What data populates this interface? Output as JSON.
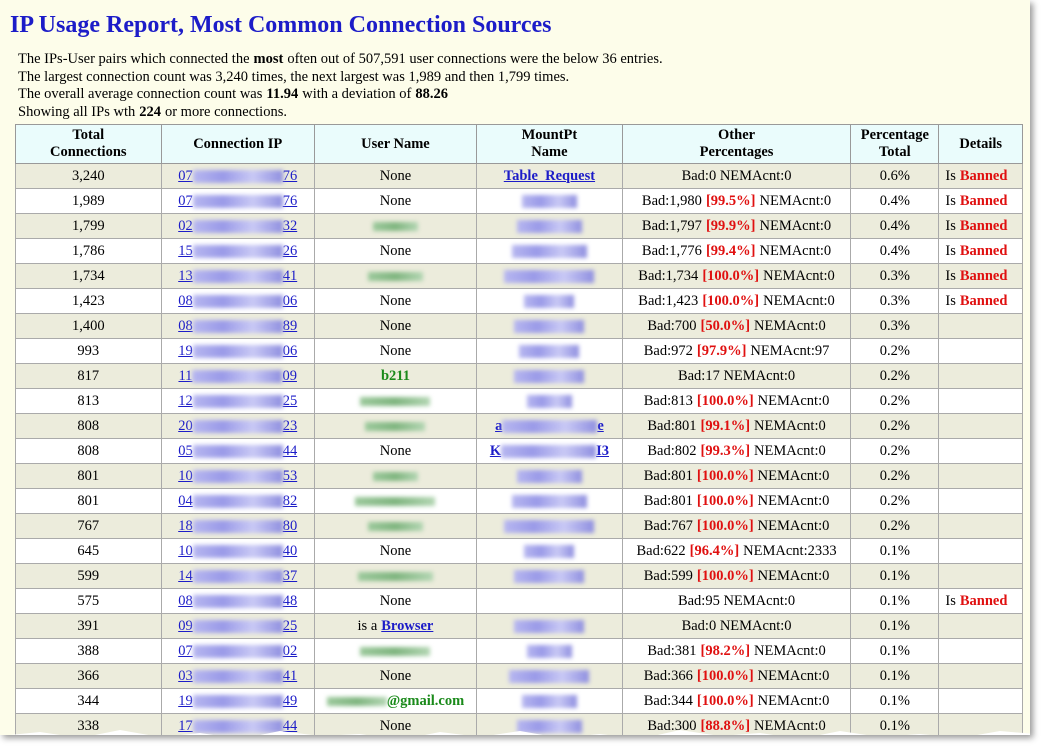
{
  "header": {
    "title": "IP Usage Report, Most Common Connection Sources"
  },
  "intro": [
    [
      "The IPs-User pairs which connected the",
      "most",
      "often out of 507,591 user connections were the below 36 entries."
    ],
    [
      "The largest connection count was 3,240 times, the next largest was 1,989 and then 1,799 times."
    ],
    [
      "The overall average connection count was",
      "11.94",
      "with a deviation of",
      "88.26"
    ],
    [
      "Showing all IPs wth",
      "224",
      "or more connections."
    ]
  ],
  "table": {
    "headers": [
      [
        "Total",
        "Connections"
      ],
      [
        "Connection IP"
      ],
      [
        "User Name"
      ],
      [
        "MountPt",
        "Name"
      ],
      [
        "Other",
        "Percentages"
      ],
      [
        "Percentage",
        "Total"
      ],
      [
        "Details"
      ]
    ],
    "rows": [
      {
        "total": "3,240",
        "ip": [
          "07",
          "76"
        ],
        "user": "None",
        "mount": "Table_Request",
        "other": [
          "Bad:0 NEMAcnt:0"
        ],
        "pct": "0.6%",
        "details": [
          "Is",
          "Banned"
        ]
      },
      {
        "total": "1,989",
        "ip": [
          "07",
          "76"
        ],
        "user": "None",
        "mount_blur": true,
        "other": [
          "Bad:1,980",
          "[99.5%]",
          "NEMAcnt:0"
        ],
        "pct": "0.4%",
        "details": [
          "Is",
          "Banned"
        ]
      },
      {
        "total": "1,799",
        "ip": [
          "02",
          "32"
        ],
        "user_blur": true,
        "mount_blur": true,
        "other": [
          "Bad:1,797",
          "[99.9%]",
          "NEMAcnt:0"
        ],
        "pct": "0.4%",
        "details": [
          "Is",
          "Banned"
        ]
      },
      {
        "total": "1,786",
        "ip": [
          "15",
          "26"
        ],
        "user": "None",
        "mount_blur": true,
        "other": [
          "Bad:1,776",
          "[99.4%]",
          "NEMAcnt:0"
        ],
        "pct": "0.4%",
        "details": [
          "Is",
          "Banned"
        ]
      },
      {
        "total": "1,734",
        "ip": [
          "13",
          "41"
        ],
        "user_blur": true,
        "mount_blur": true,
        "other": [
          "Bad:1,734",
          "[100.0%]",
          "NEMAcnt:0"
        ],
        "pct": "0.3%",
        "details": [
          "Is",
          "Banned"
        ]
      },
      {
        "total": "1,423",
        "ip": [
          "08",
          "06"
        ],
        "user": "None",
        "mount_blur": true,
        "other": [
          "Bad:1,423",
          "[100.0%]",
          "NEMAcnt:0"
        ],
        "pct": "0.3%",
        "details": [
          "Is",
          "Banned"
        ]
      },
      {
        "total": "1,400",
        "ip": [
          "08",
          "89"
        ],
        "user": "None",
        "mount_blur": true,
        "other": [
          "Bad:700",
          "[50.0%]",
          "NEMAcnt:0"
        ],
        "pct": "0.3%"
      },
      {
        "total": "993",
        "ip": [
          "19",
          "06"
        ],
        "user": "None",
        "mount_blur": true,
        "other": [
          "Bad:972",
          "[97.9%]",
          "NEMAcnt:97"
        ],
        "pct": "0.2%"
      },
      {
        "total": "817",
        "ip": [
          "11",
          "09"
        ],
        "user_name": "b211",
        "mount_blur": true,
        "other": [
          "Bad:17 NEMAcnt:0"
        ],
        "pct": "0.2%"
      },
      {
        "total": "813",
        "ip": [
          "12",
          "25"
        ],
        "user_blur": true,
        "mount_blur": true,
        "other": [
          "Bad:813",
          "[100.0%]",
          "NEMAcnt:0"
        ],
        "pct": "0.2%"
      },
      {
        "total": "808",
        "ip": [
          "20",
          "23"
        ],
        "user_blur": true,
        "mount_ends": [
          "a",
          "e"
        ],
        "other": [
          "Bad:801",
          "[99.1%]",
          "NEMAcnt:0"
        ],
        "pct": "0.2%"
      },
      {
        "total": "808",
        "ip": [
          "05",
          "44"
        ],
        "user": "None",
        "mount_ends": [
          "K",
          "I3"
        ],
        "other": [
          "Bad:802",
          "[99.3%]",
          "NEMAcnt:0"
        ],
        "pct": "0.2%"
      },
      {
        "total": "801",
        "ip": [
          "10",
          "53"
        ],
        "user_blur": true,
        "mount_blur": true,
        "other": [
          "Bad:801",
          "[100.0%]",
          "NEMAcnt:0"
        ],
        "pct": "0.2%"
      },
      {
        "total": "801",
        "ip": [
          "04",
          "82"
        ],
        "user_blur": true,
        "mount_blur": true,
        "other": [
          "Bad:801",
          "[100.0%]",
          "NEMAcnt:0"
        ],
        "pct": "0.2%"
      },
      {
        "total": "767",
        "ip": [
          "18",
          "80"
        ],
        "user_blur": true,
        "mount_blur": true,
        "other": [
          "Bad:767",
          "[100.0%]",
          "NEMAcnt:0"
        ],
        "pct": "0.2%"
      },
      {
        "total": "645",
        "ip": [
          "10",
          "40"
        ],
        "user": "None",
        "mount_blur": true,
        "other": [
          "Bad:622",
          "[96.4%]",
          "NEMAcnt:2333"
        ],
        "pct": "0.1%"
      },
      {
        "total": "599",
        "ip": [
          "14",
          "37"
        ],
        "user_blur": true,
        "mount_blur": true,
        "other": [
          "Bad:599",
          "[100.0%]",
          "NEMAcnt:0"
        ],
        "pct": "0.1%"
      },
      {
        "total": "575",
        "ip": [
          "08",
          "48"
        ],
        "user": "None",
        "other": [
          "Bad:95 NEMAcnt:0"
        ],
        "pct": "0.1%",
        "details": [
          "Is",
          "Banned"
        ]
      },
      {
        "total": "391",
        "ip": [
          "09",
          "25"
        ],
        "user_prefix": "is a",
        "user_link": "Browser",
        "mount_blur": true,
        "other": [
          "Bad:0 NEMAcnt:0"
        ],
        "pct": "0.1%"
      },
      {
        "total": "388",
        "ip": [
          "07",
          "02"
        ],
        "user_blur": true,
        "mount_blur": true,
        "other": [
          "Bad:381",
          "[98.2%]",
          "NEMAcnt:0"
        ],
        "pct": "0.1%"
      },
      {
        "total": "366",
        "ip": [
          "03",
          "41"
        ],
        "user": "None",
        "mount_blur": true,
        "other": [
          "Bad:366",
          "[100.0%]",
          "NEMAcnt:0"
        ],
        "pct": "0.1%"
      },
      {
        "total": "344",
        "ip": [
          "19",
          "49"
        ],
        "user_blur": true,
        "user_suffix": "@gmail.com",
        "mount_blur": true,
        "other": [
          "Bad:344",
          "[100.0%]",
          "NEMAcnt:0"
        ],
        "pct": "0.1%"
      },
      {
        "total": "338",
        "ip": [
          "17",
          "44"
        ],
        "user": "None",
        "mount_blur": true,
        "other": [
          "Bad:300",
          "[88.8%]",
          "NEMAcnt:0"
        ],
        "pct": "0.1%"
      }
    ]
  }
}
